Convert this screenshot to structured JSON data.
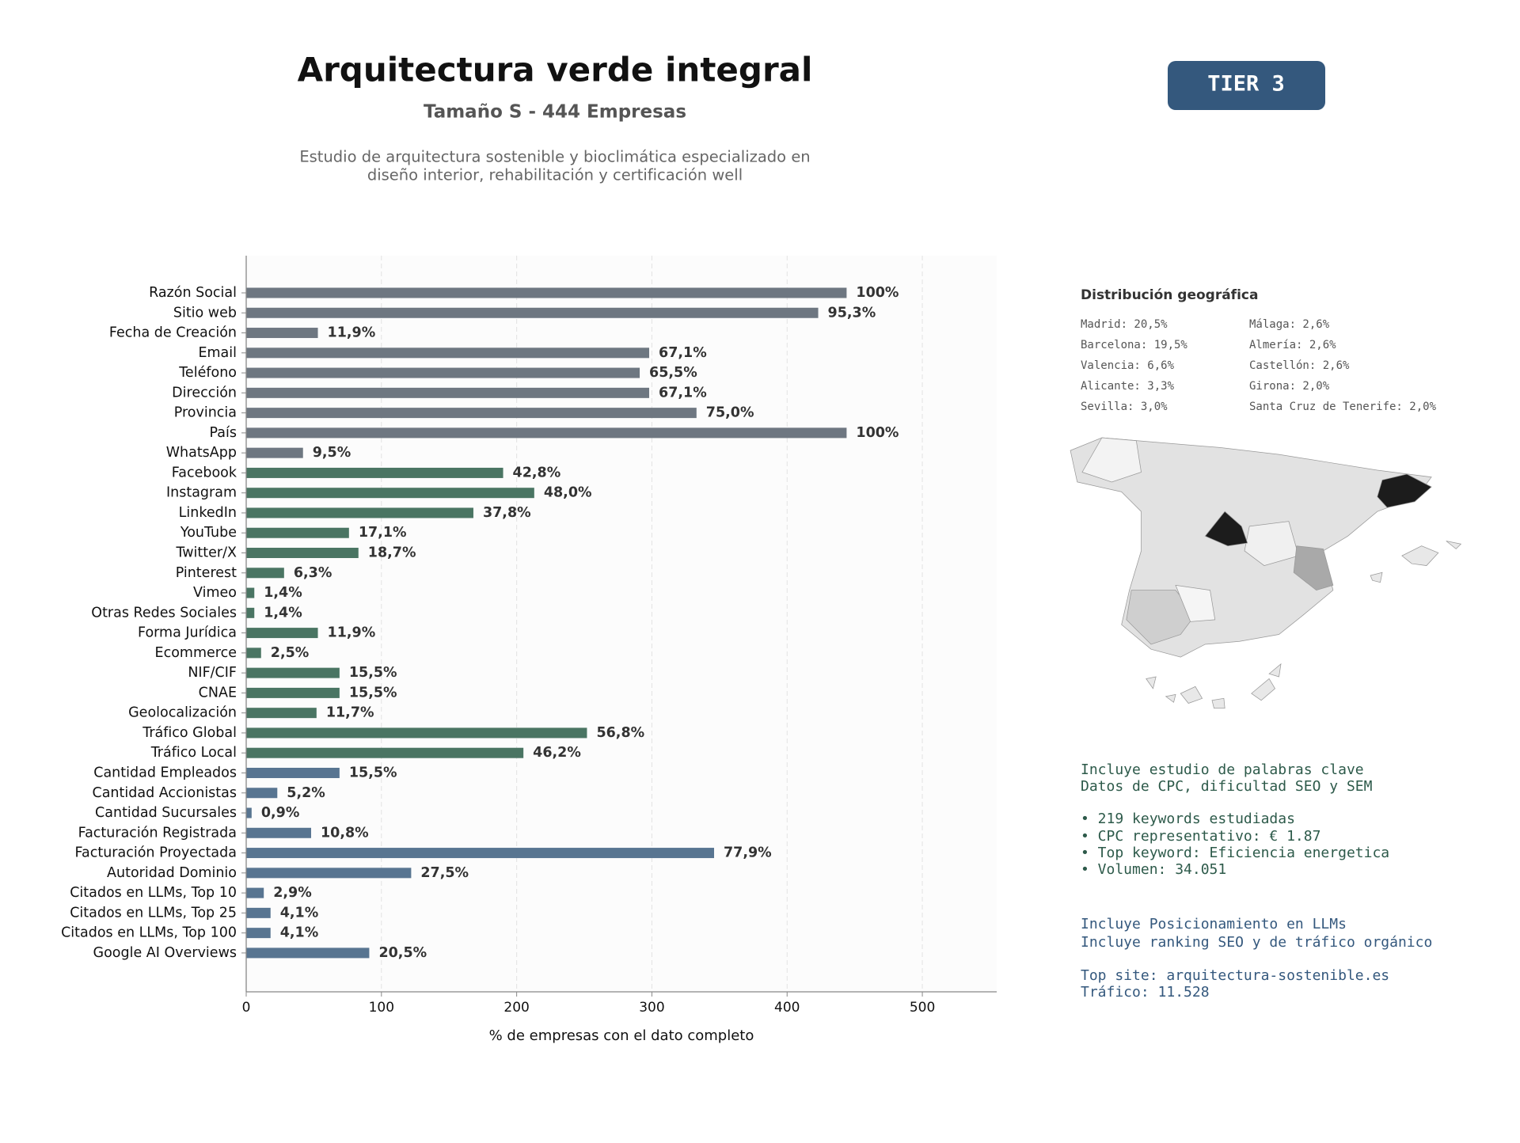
{
  "header": {
    "title": "Arquitectura verde integral",
    "subtitle": "Tamaño S - 444 Empresas",
    "description": [
      "Estudio de arquitectura sostenible y bioclimática especializado en",
      "diseño interior, rehabilitación y certificación well"
    ],
    "badge": "TIER 3"
  },
  "chart_data": {
    "type": "barh",
    "xlabel": "% de empresas con el dato completo",
    "categories": [
      "Razón Social",
      "Sitio web",
      "Fecha de Creación",
      "Email",
      "Teléfono",
      "Dirección",
      "Provincia",
      "País",
      "WhatsApp",
      "Facebook",
      "Instagram",
      "LinkedIn",
      "YouTube",
      "Twitter/X",
      "Pinterest",
      "Vimeo",
      "Otras Redes Sociales",
      "Forma Jurídica",
      "Ecommerce",
      "NIF/CIF",
      "CNAE",
      "Geolocalización",
      "Tráfico Global",
      "Tráfico Local",
      "Cantidad Empleados",
      "Cantidad Accionistas",
      "Cantidad Sucursales",
      "Facturación Registrada",
      "Facturación Proyectada",
      "Autoridad Dominio",
      "Citados en LLMs, Top 10",
      "Citados en LLMs, Top 25",
      "Citados en LLMs, Top 100",
      "Google AI Overviews"
    ],
    "values": [
      444,
      423,
      53,
      298,
      291,
      298,
      333,
      444,
      42,
      190,
      213,
      168,
      76,
      83,
      28,
      6,
      6,
      53,
      11,
      69,
      69,
      52,
      252,
      205,
      69,
      23,
      4,
      48,
      346,
      122,
      13,
      18,
      18,
      91
    ],
    "value_labels": [
      "100%",
      "95,3%",
      "11,9%",
      "67,1%",
      "65,5%",
      "67,1%",
      "75,0%",
      "100%",
      "9,5%",
      "42,8%",
      "48,0%",
      "37,8%",
      "17,1%",
      "18,7%",
      "6,3%",
      "1,4%",
      "1,4%",
      "11,9%",
      "2,5%",
      "15,5%",
      "15,5%",
      "11,7%",
      "56,8%",
      "46,2%",
      "15,5%",
      "5,2%",
      "0,9%",
      "10,8%",
      "77,9%",
      "27,5%",
      "2,9%",
      "4,1%",
      "4,1%",
      "20,5%"
    ],
    "colors": [
      "#6e7781",
      "#6e7781",
      "#6e7781",
      "#6e7781",
      "#6e7781",
      "#6e7781",
      "#6e7781",
      "#6e7781",
      "#6e7781",
      "#4a7563",
      "#4a7563",
      "#4a7563",
      "#4a7563",
      "#4a7563",
      "#4a7563",
      "#4a7563",
      "#4a7563",
      "#4a7563",
      "#4a7563",
      "#4a7563",
      "#4a7563",
      "#4a7563",
      "#4a7563",
      "#4a7563",
      "#587591",
      "#587591",
      "#587591",
      "#587591",
      "#587591",
      "#587591",
      "#587591",
      "#587591",
      "#587591",
      "#587591"
    ],
    "xlim": [
      0,
      555
    ],
    "xticks": [
      0,
      100,
      200,
      300,
      400,
      500
    ],
    "grid": true
  },
  "geo": {
    "title": "Distribución geográfica",
    "items": [
      "Madrid: 20,5%",
      "Barcelona: 19,5%",
      "Valencia: 6,6%",
      "Alicante: 3,3%",
      "Sevilla: 3,0%",
      "Málaga: 2,6%",
      "Almería: 2,6%",
      "Castellón: 2,6%",
      "Girona: 2,0%",
      "Santa Cruz de Tenerife: 2,0%"
    ]
  },
  "keywords": {
    "lines": [
      "Incluye estudio de palabras clave",
      "Datos de CPC, dificultad SEO y SEM",
      "• 219 keywords estudiadas",
      "• CPC representativo: € 1.87",
      "• Top keyword: Eficiencia energetica",
      "• Volumen: 34.051"
    ]
  },
  "llm": {
    "lines": [
      "Incluye Posicionamiento en LLMs",
      "Incluye ranking SEO y de tráfico orgánico",
      "Top site: arquitectura-sostenible.es",
      "Tráfico: 11.528"
    ]
  }
}
